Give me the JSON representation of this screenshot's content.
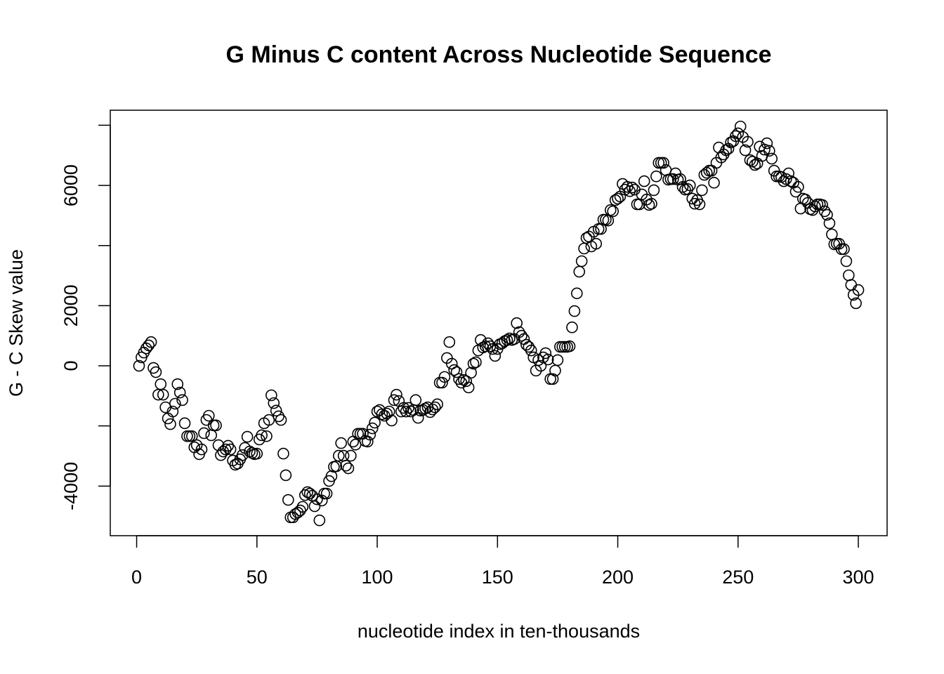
{
  "chart_data": {
    "type": "scatter",
    "title": "G Minus C content Across Nucleotide Sequence",
    "xlabel": "nucleotide index in ten-thousands",
    "ylabel": "G - C Skew value",
    "color": "#000000",
    "xlim": [
      -10.96,
      311.96
    ],
    "ylim": [
      -5650,
      8500
    ],
    "xticks": [
      0,
      50,
      100,
      150,
      200,
      250,
      300
    ],
    "yticks": [
      -4000,
      {
        "value": -2000,
        "label": null
      },
      0,
      2000,
      {
        "value": 4000,
        "label": null
      },
      6000,
      {
        "value": 8000,
        "label": null
      }
    ],
    "x": [
      1,
      2,
      3,
      4,
      5,
      6,
      7,
      8,
      9,
      10,
      11,
      12,
      13,
      14,
      15,
      16,
      17,
      18,
      19,
      20,
      21,
      22,
      23,
      24,
      25,
      26,
      27,
      28,
      29,
      30,
      31,
      32,
      33,
      34,
      35,
      36,
      37,
      38,
      39,
      40,
      41,
      42,
      43,
      44,
      45,
      46,
      47,
      48,
      49,
      50,
      51,
      52,
      53,
      54,
      55,
      56,
      57,
      58,
      59,
      60,
      61,
      62,
      63,
      64,
      65,
      66,
      67,
      68,
      69,
      70,
      71,
      72,
      73,
      74,
      75,
      76,
      77,
      78,
      79,
      80,
      81,
      82,
      83,
      84,
      85,
      86,
      87,
      88,
      89,
      90,
      91,
      92,
      93,
      94,
      95,
      96,
      97,
      98,
      99,
      100,
      101,
      102,
      103,
      104,
      105,
      106,
      107,
      108,
      109,
      110,
      111,
      112,
      113,
      114,
      115,
      116,
      117,
      118,
      119,
      120,
      121,
      122,
      123,
      124,
      125,
      126,
      127,
      128,
      129,
      130,
      131,
      132,
      133,
      134,
      135,
      136,
      137,
      138,
      139,
      140,
      141,
      142,
      143,
      144,
      145,
      146,
      147,
      148,
      149,
      150,
      151,
      152,
      153,
      154,
      155,
      156,
      157,
      158,
      159,
      160,
      161,
      162,
      163,
      164,
      165,
      166,
      167,
      168,
      169,
      170,
      171,
      172,
      173,
      174,
      175,
      176,
      177,
      178,
      179,
      180,
      181,
      182,
      183,
      184,
      185,
      186,
      187,
      188,
      189,
      190,
      191,
      192,
      193,
      194,
      195,
      196,
      197,
      198,
      199,
      200,
      201,
      202,
      203,
      204,
      205,
      206,
      207,
      208,
      209,
      210,
      211,
      212,
      213,
      214,
      215,
      216,
      217,
      218,
      219,
      220,
      221,
      222,
      223,
      224,
      225,
      226,
      227,
      228,
      229,
      230,
      231,
      232,
      233,
      234,
      235,
      236,
      237,
      238,
      239,
      240,
      241,
      242,
      243,
      244,
      245,
      246,
      247,
      248,
      249,
      250,
      251,
      252,
      253,
      254,
      255,
      256,
      257,
      258,
      259,
      260,
      261,
      262,
      263,
      264,
      265,
      266,
      267,
      268,
      269,
      270,
      271,
      272,
      273,
      274,
      275,
      276,
      277,
      278,
      279,
      280,
      281,
      282,
      283,
      284,
      285,
      286,
      287,
      288,
      289,
      290,
      291,
      292,
      293,
      294,
      295,
      296,
      297,
      298,
      299,
      300
    ],
    "values": [
      0,
      280,
      440,
      580,
      680,
      790,
      -70,
      -210,
      -960,
      -610,
      -960,
      -1380,
      -1750,
      -1940,
      -1520,
      -1260,
      -610,
      -890,
      -1140,
      -1910,
      -2340,
      -2340,
      -2340,
      -2710,
      -2640,
      -2940,
      -2780,
      -2240,
      -1800,
      -1660,
      -2310,
      -1980,
      -1980,
      -2640,
      -2970,
      -2850,
      -2780,
      -2660,
      -2780,
      -3150,
      -3290,
      -3250,
      -3110,
      -2970,
      -2730,
      -2360,
      -2850,
      -2900,
      -2940,
      -2920,
      -2450,
      -2310,
      -1910,
      -2340,
      -1800,
      -980,
      -1240,
      -1490,
      -1680,
      -1800,
      -2920,
      -3640,
      -4460,
      -5040,
      -5040,
      -4930,
      -4880,
      -4810,
      -4690,
      -4300,
      -4200,
      -4250,
      -4320,
      -4670,
      -4440,
      -5140,
      -4480,
      -4250,
      -4250,
      -3830,
      -3670,
      -3360,
      -3340,
      -2990,
      -2570,
      -2990,
      -3320,
      -3410,
      -2990,
      -2520,
      -2620,
      -2260,
      -2260,
      -2260,
      -2500,
      -2520,
      -2290,
      -2080,
      -1890,
      -1520,
      -1470,
      -1610,
      -1660,
      -1590,
      -1520,
      -1820,
      -1140,
      -960,
      -1170,
      -1520,
      -1400,
      -1520,
      -1400,
      -1520,
      -1470,
      -1140,
      -1730,
      -1490,
      -1470,
      -1420,
      -1380,
      -1540,
      -1450,
      -1380,
      -1280,
      -560,
      -560,
      -370,
      260,
      790,
      70,
      -140,
      -210,
      -440,
      -560,
      -470,
      -510,
      -720,
      -230,
      70,
      120,
      510,
      860,
      610,
      650,
      750,
      650,
      560,
      330,
      560,
      720,
      750,
      820,
      860,
      910,
      860,
      890,
      1420,
      1120,
      1000,
      890,
      700,
      630,
      510,
      280,
      -160,
      190,
      0,
      280,
      420,
      210,
      -440,
      -440,
      -160,
      190,
      630,
      630,
      630,
      630,
      650,
      1280,
      1820,
      2410,
      3130,
      3480,
      3900,
      4250,
      4300,
      3970,
      4460,
      4060,
      4550,
      4550,
      4860,
      4860,
      4830,
      5180,
      5140,
      5510,
      5560,
      5630,
      6050,
      5860,
      5950,
      5810,
      5930,
      5860,
      5370,
      5370,
      5700,
      6140,
      5530,
      5350,
      5390,
      5840,
      6300,
      6750,
      6750,
      6750,
      6510,
      6190,
      6210,
      6210,
      6400,
      6190,
      6210,
      5950,
      5860,
      5880,
      6000,
      5560,
      5390,
      5510,
      5370,
      5840,
      6350,
      6420,
      6490,
      6490,
      6090,
      6750,
      7260,
      6930,
      7030,
      7170,
      7220,
      7430,
      7470,
      7640,
      7730,
      7960,
      7610,
      7170,
      7450,
      6840,
      6790,
      6680,
      6730,
      7290,
      6980,
      7190,
      7400,
      7150,
      6890,
      6490,
      6300,
      6300,
      6280,
      6140,
      6210,
      6400,
      6140,
      6090,
      5790,
      5950,
      5230,
      5560,
      5530,
      5420,
      5210,
      5180,
      5300,
      5370,
      5370,
      5350,
      5140,
      5020,
      4740,
      4370,
      4040,
      4060,
      4060,
      3880,
      3880,
      3480,
      3010,
      2690,
      2360,
      2080,
      2520
    ]
  }
}
